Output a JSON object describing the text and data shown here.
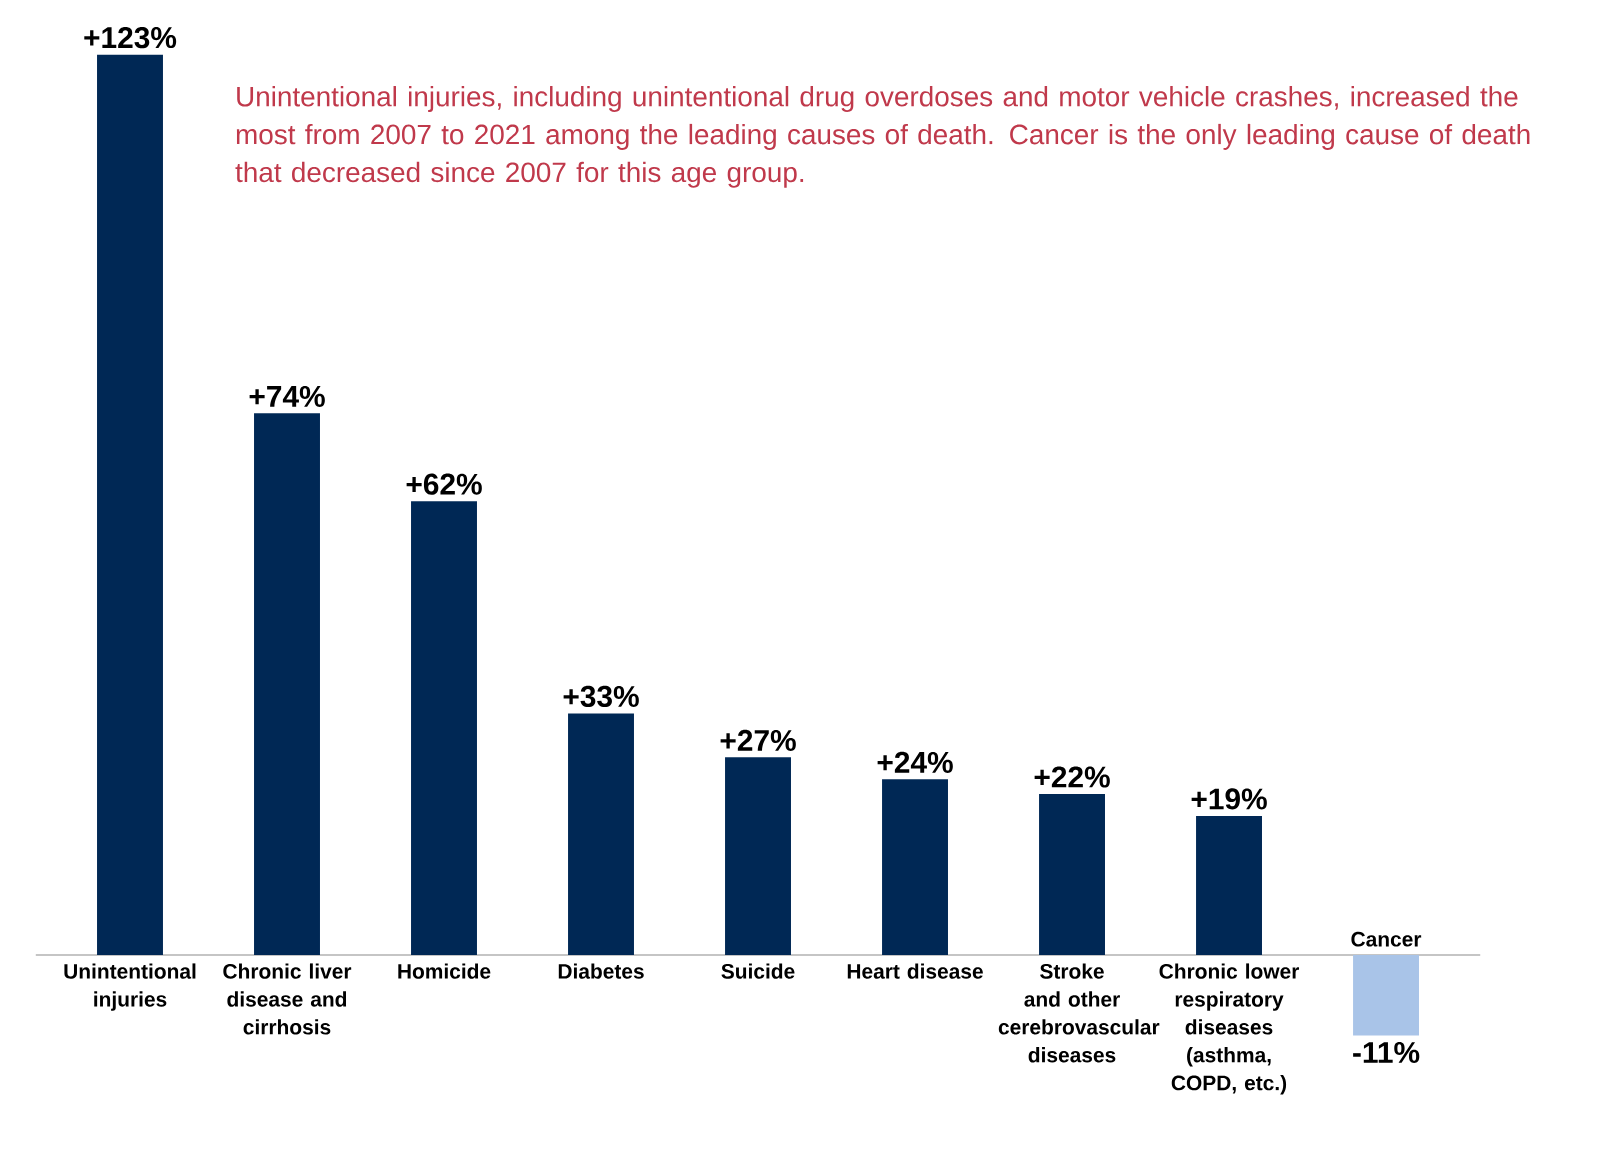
{
  "chart_data": {
    "type": "bar",
    "categories": [
      "Unintentional injuries",
      "Chronic liver disease and cirrhosis",
      "Homicide",
      "Diabetes",
      "Suicide",
      "Heart disease",
      "Stroke and other cerebrovascular diseases",
      "Chronic lower respiratory diseases (asthma, COPD, etc.)",
      "Cancer"
    ],
    "values": [
      123,
      74,
      62,
      33,
      27,
      24,
      22,
      19,
      -11
    ],
    "colors": [
      "#002855",
      "#002855",
      "#002855",
      "#002855",
      "#002855",
      "#002855",
      "#002855",
      "#002855",
      "#a9c4e8"
    ],
    "value_labels": [
      "+123%",
      "+74%",
      "+62%",
      "+33%",
      "+27%",
      "+24%",
      "+22%",
      "+19%",
      "-11%"
    ],
    "annotations": [
      "Unintentional injuries, including unintentional drug overdoses and motor vehicle crashes, increased the most from 2007 to 2021 among the leading causes of death. Cancer is the only leading cause of death that decreased since 2007 for this age group."
    ]
  }
}
